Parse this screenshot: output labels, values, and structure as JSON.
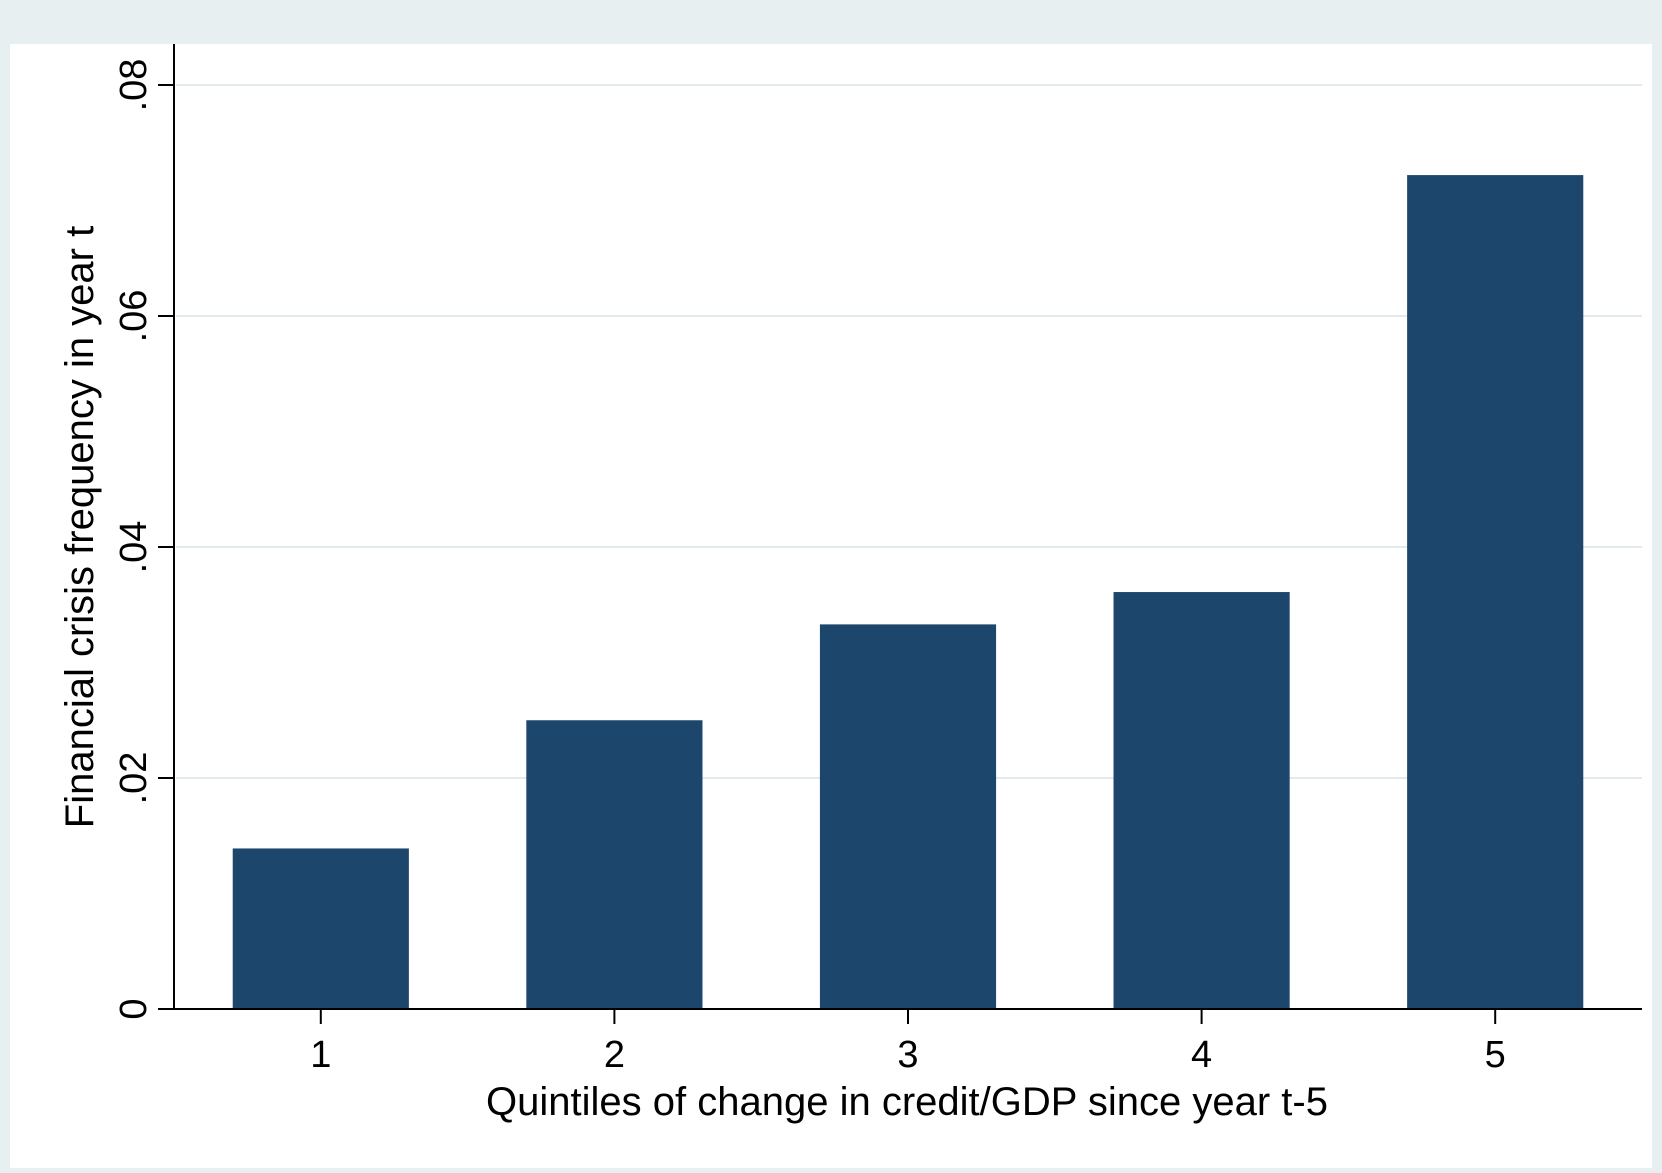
{
  "chart_data": {
    "type": "bar",
    "categories": [
      "1",
      "2",
      "3",
      "4",
      "5"
    ],
    "values": [
      0.0139,
      0.025,
      0.0333,
      0.0361,
      0.0722
    ],
    "title": "",
    "xlabel": "Quintiles of change in credit/GDP since year t-5",
    "ylabel": "Financial crisis frequency in year t",
    "ylim": [
      0,
      0.08
    ],
    "yticks": [
      0,
      0.02,
      0.04,
      0.06,
      0.08
    ],
    "ytick_labels": [
      "0",
      ".02",
      ".04",
      ".06",
      ".08"
    ],
    "grid": true,
    "colors": {
      "bar": "#1d466c",
      "background": "#e8eff1",
      "plot_area": "#ffffff",
      "grid": "#e2eaee"
    }
  }
}
